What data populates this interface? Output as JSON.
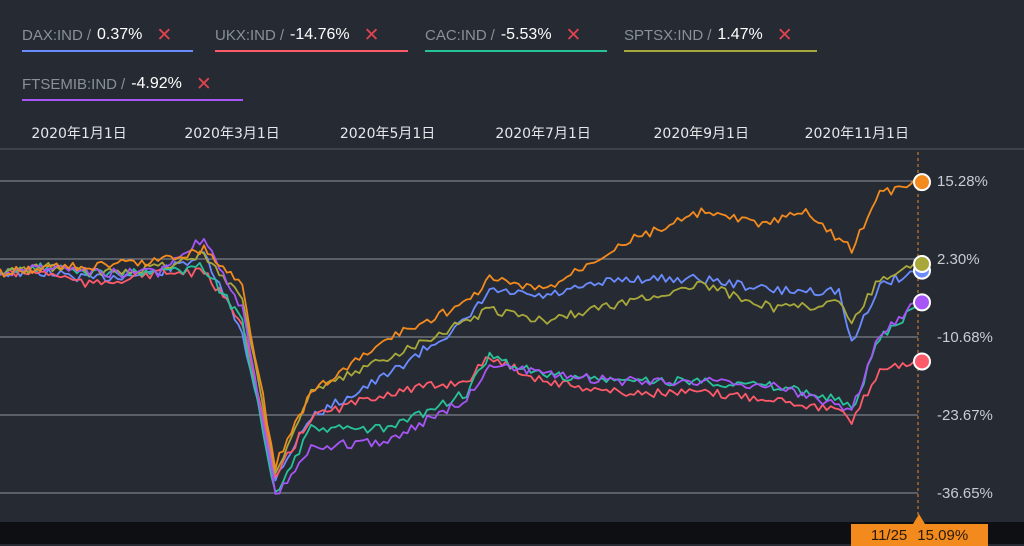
{
  "legend": [
    {
      "label": "DAX:IND",
      "sep": "/",
      "value": "0.37%",
      "color": "#6b8cff"
    },
    {
      "label": "UKX:IND",
      "sep": "/",
      "value": "-14.76%",
      "color": "#ff5a6a"
    },
    {
      "label": "CAC:IND",
      "sep": "/",
      "value": "-5.53%",
      "color": "#27c29a"
    },
    {
      "label": "SPTSX:IND",
      "sep": "/",
      "value": "1.47%",
      "color": "#a8a83a"
    },
    {
      "label": "FTSEMIB:IND",
      "sep": "/",
      "value": "-4.92%",
      "color": "#a855f7"
    }
  ],
  "remove_glyph": "✕",
  "cursor": {
    "date": "11/25",
    "value": "15.09%",
    "color": "#f28a1e"
  },
  "chart_data": {
    "type": "line",
    "x_ticks": [
      "2020年1月1日",
      "2020年3月1日",
      "2020年5月1日",
      "2020年7月1日",
      "2020年9月1日",
      "2020年11月1日"
    ],
    "y_ticks": [
      15.28,
      2.3,
      -10.68,
      -23.67,
      -36.65
    ],
    "y_tick_labels": [
      "15.28%",
      "2.30%",
      "-10.68%",
      "-23.67%",
      "-36.65%"
    ],
    "ylim": [
      -36.65,
      15.28
    ],
    "x_range": [
      "2019-12-01",
      "2020-11-25"
    ],
    "grid": true,
    "legend_position": "top-left",
    "series": [
      {
        "name": "DAX:IND",
        "color": "#6b8cff",
        "end_marker": true,
        "points": [
          [
            "2019-12-01",
            0
          ],
          [
            "2019-12-20",
            0
          ],
          [
            "2020-01-05",
            -1
          ],
          [
            "2020-02-01",
            0
          ],
          [
            "2020-02-19",
            3
          ],
          [
            "2020-03-05",
            -10
          ],
          [
            "2020-03-18",
            -34
          ],
          [
            "2020-04-01",
            -24
          ],
          [
            "2020-05-01",
            -17
          ],
          [
            "2020-06-01",
            -8
          ],
          [
            "2020-06-10",
            -3
          ],
          [
            "2020-07-01",
            -4
          ],
          [
            "2020-08-01",
            -1
          ],
          [
            "2020-09-01",
            -1
          ],
          [
            "2020-10-01",
            -3
          ],
          [
            "2020-10-25",
            -3
          ],
          [
            "2020-10-30",
            -12
          ],
          [
            "2020-11-10",
            -2
          ],
          [
            "2020-11-25",
            0.37
          ]
        ]
      },
      {
        "name": "UKX:IND",
        "color": "#ff5a6a",
        "end_marker": true,
        "points": [
          [
            "2019-12-01",
            0
          ],
          [
            "2019-12-20",
            0
          ],
          [
            "2020-01-05",
            -2
          ],
          [
            "2020-02-01",
            0
          ],
          [
            "2020-02-19",
            0
          ],
          [
            "2020-03-05",
            -8
          ],
          [
            "2020-03-18",
            -34
          ],
          [
            "2020-04-01",
            -24
          ],
          [
            "2020-05-01",
            -20
          ],
          [
            "2020-06-01",
            -18
          ],
          [
            "2020-06-10",
            -14
          ],
          [
            "2020-07-01",
            -18
          ],
          [
            "2020-08-01",
            -20
          ],
          [
            "2020-09-01",
            -20
          ],
          [
            "2020-10-01",
            -21
          ],
          [
            "2020-10-25",
            -23
          ],
          [
            "2020-10-30",
            -25
          ],
          [
            "2020-11-10",
            -16
          ],
          [
            "2020-11-25",
            -14.76
          ]
        ]
      },
      {
        "name": "CAC:IND",
        "color": "#27c29a",
        "end_marker": false,
        "points": [
          [
            "2019-12-01",
            0
          ],
          [
            "2019-12-20",
            1
          ],
          [
            "2020-01-05",
            0
          ],
          [
            "2020-02-01",
            0
          ],
          [
            "2020-02-19",
            1
          ],
          [
            "2020-03-05",
            -8
          ],
          [
            "2020-03-18",
            -37
          ],
          [
            "2020-04-01",
            -26
          ],
          [
            "2020-05-01",
            -26
          ],
          [
            "2020-06-01",
            -20
          ],
          [
            "2020-06-10",
            -14
          ],
          [
            "2020-07-01",
            -17
          ],
          [
            "2020-08-01",
            -18
          ],
          [
            "2020-09-01",
            -18
          ],
          [
            "2020-10-01",
            -19
          ],
          [
            "2020-10-25",
            -21
          ],
          [
            "2020-10-30",
            -23
          ],
          [
            "2020-11-10",
            -11
          ],
          [
            "2020-11-25",
            -5.53
          ]
        ]
      },
      {
        "name": "SPTSX:IND",
        "color": "#a8a83a",
        "end_marker": true,
        "points": [
          [
            "2019-12-01",
            0
          ],
          [
            "2019-12-20",
            1
          ],
          [
            "2020-01-05",
            0
          ],
          [
            "2020-02-01",
            1
          ],
          [
            "2020-02-19",
            3
          ],
          [
            "2020-03-05",
            -4
          ],
          [
            "2020-03-18",
            -33
          ],
          [
            "2020-04-01",
            -20
          ],
          [
            "2020-05-01",
            -14
          ],
          [
            "2020-06-01",
            -8
          ],
          [
            "2020-06-10",
            -6
          ],
          [
            "2020-07-01",
            -8
          ],
          [
            "2020-08-01",
            -5
          ],
          [
            "2020-09-01",
            -2
          ],
          [
            "2020-10-01",
            -6
          ],
          [
            "2020-10-25",
            -5
          ],
          [
            "2020-10-30",
            -8
          ],
          [
            "2020-11-10",
            -1
          ],
          [
            "2020-11-25",
            1.47
          ]
        ]
      },
      {
        "name": "FTSEMIB:IND",
        "color": "#a855f7",
        "end_marker": true,
        "points": [
          [
            "2019-12-01",
            0
          ],
          [
            "2019-12-20",
            1
          ],
          [
            "2020-01-05",
            0
          ],
          [
            "2020-02-01",
            0
          ],
          [
            "2020-02-19",
            6
          ],
          [
            "2020-03-05",
            -6
          ],
          [
            "2020-03-18",
            -37
          ],
          [
            "2020-04-01",
            -29
          ],
          [
            "2020-05-01",
            -28
          ],
          [
            "2020-06-01",
            -21
          ],
          [
            "2020-06-10",
            -15
          ],
          [
            "2020-07-01",
            -17
          ],
          [
            "2020-08-01",
            -18
          ],
          [
            "2020-09-01",
            -18
          ],
          [
            "2020-10-01",
            -19
          ],
          [
            "2020-10-25",
            -22
          ],
          [
            "2020-10-30",
            -23
          ],
          [
            "2020-11-10",
            -10
          ],
          [
            "2020-11-25",
            -4.92
          ]
        ]
      },
      {
        "name": "",
        "color": "#f28a1e",
        "end_marker": true,
        "points": [
          [
            "2019-12-01",
            0
          ],
          [
            "2019-12-20",
            1
          ],
          [
            "2020-01-05",
            1
          ],
          [
            "2020-02-01",
            2
          ],
          [
            "2020-02-19",
            4
          ],
          [
            "2020-03-05",
            -2
          ],
          [
            "2020-03-18",
            -32
          ],
          [
            "2020-04-01",
            -20
          ],
          [
            "2020-05-01",
            -11
          ],
          [
            "2020-06-01",
            -5
          ],
          [
            "2020-06-10",
            -1
          ],
          [
            "2020-07-01",
            -3
          ],
          [
            "2020-08-01",
            5
          ],
          [
            "2020-09-01",
            10
          ],
          [
            "2020-09-25",
            8
          ],
          [
            "2020-10-12",
            10
          ],
          [
            "2020-10-30",
            4
          ],
          [
            "2020-11-10",
            13
          ],
          [
            "2020-11-25",
            15.09
          ]
        ]
      }
    ]
  }
}
